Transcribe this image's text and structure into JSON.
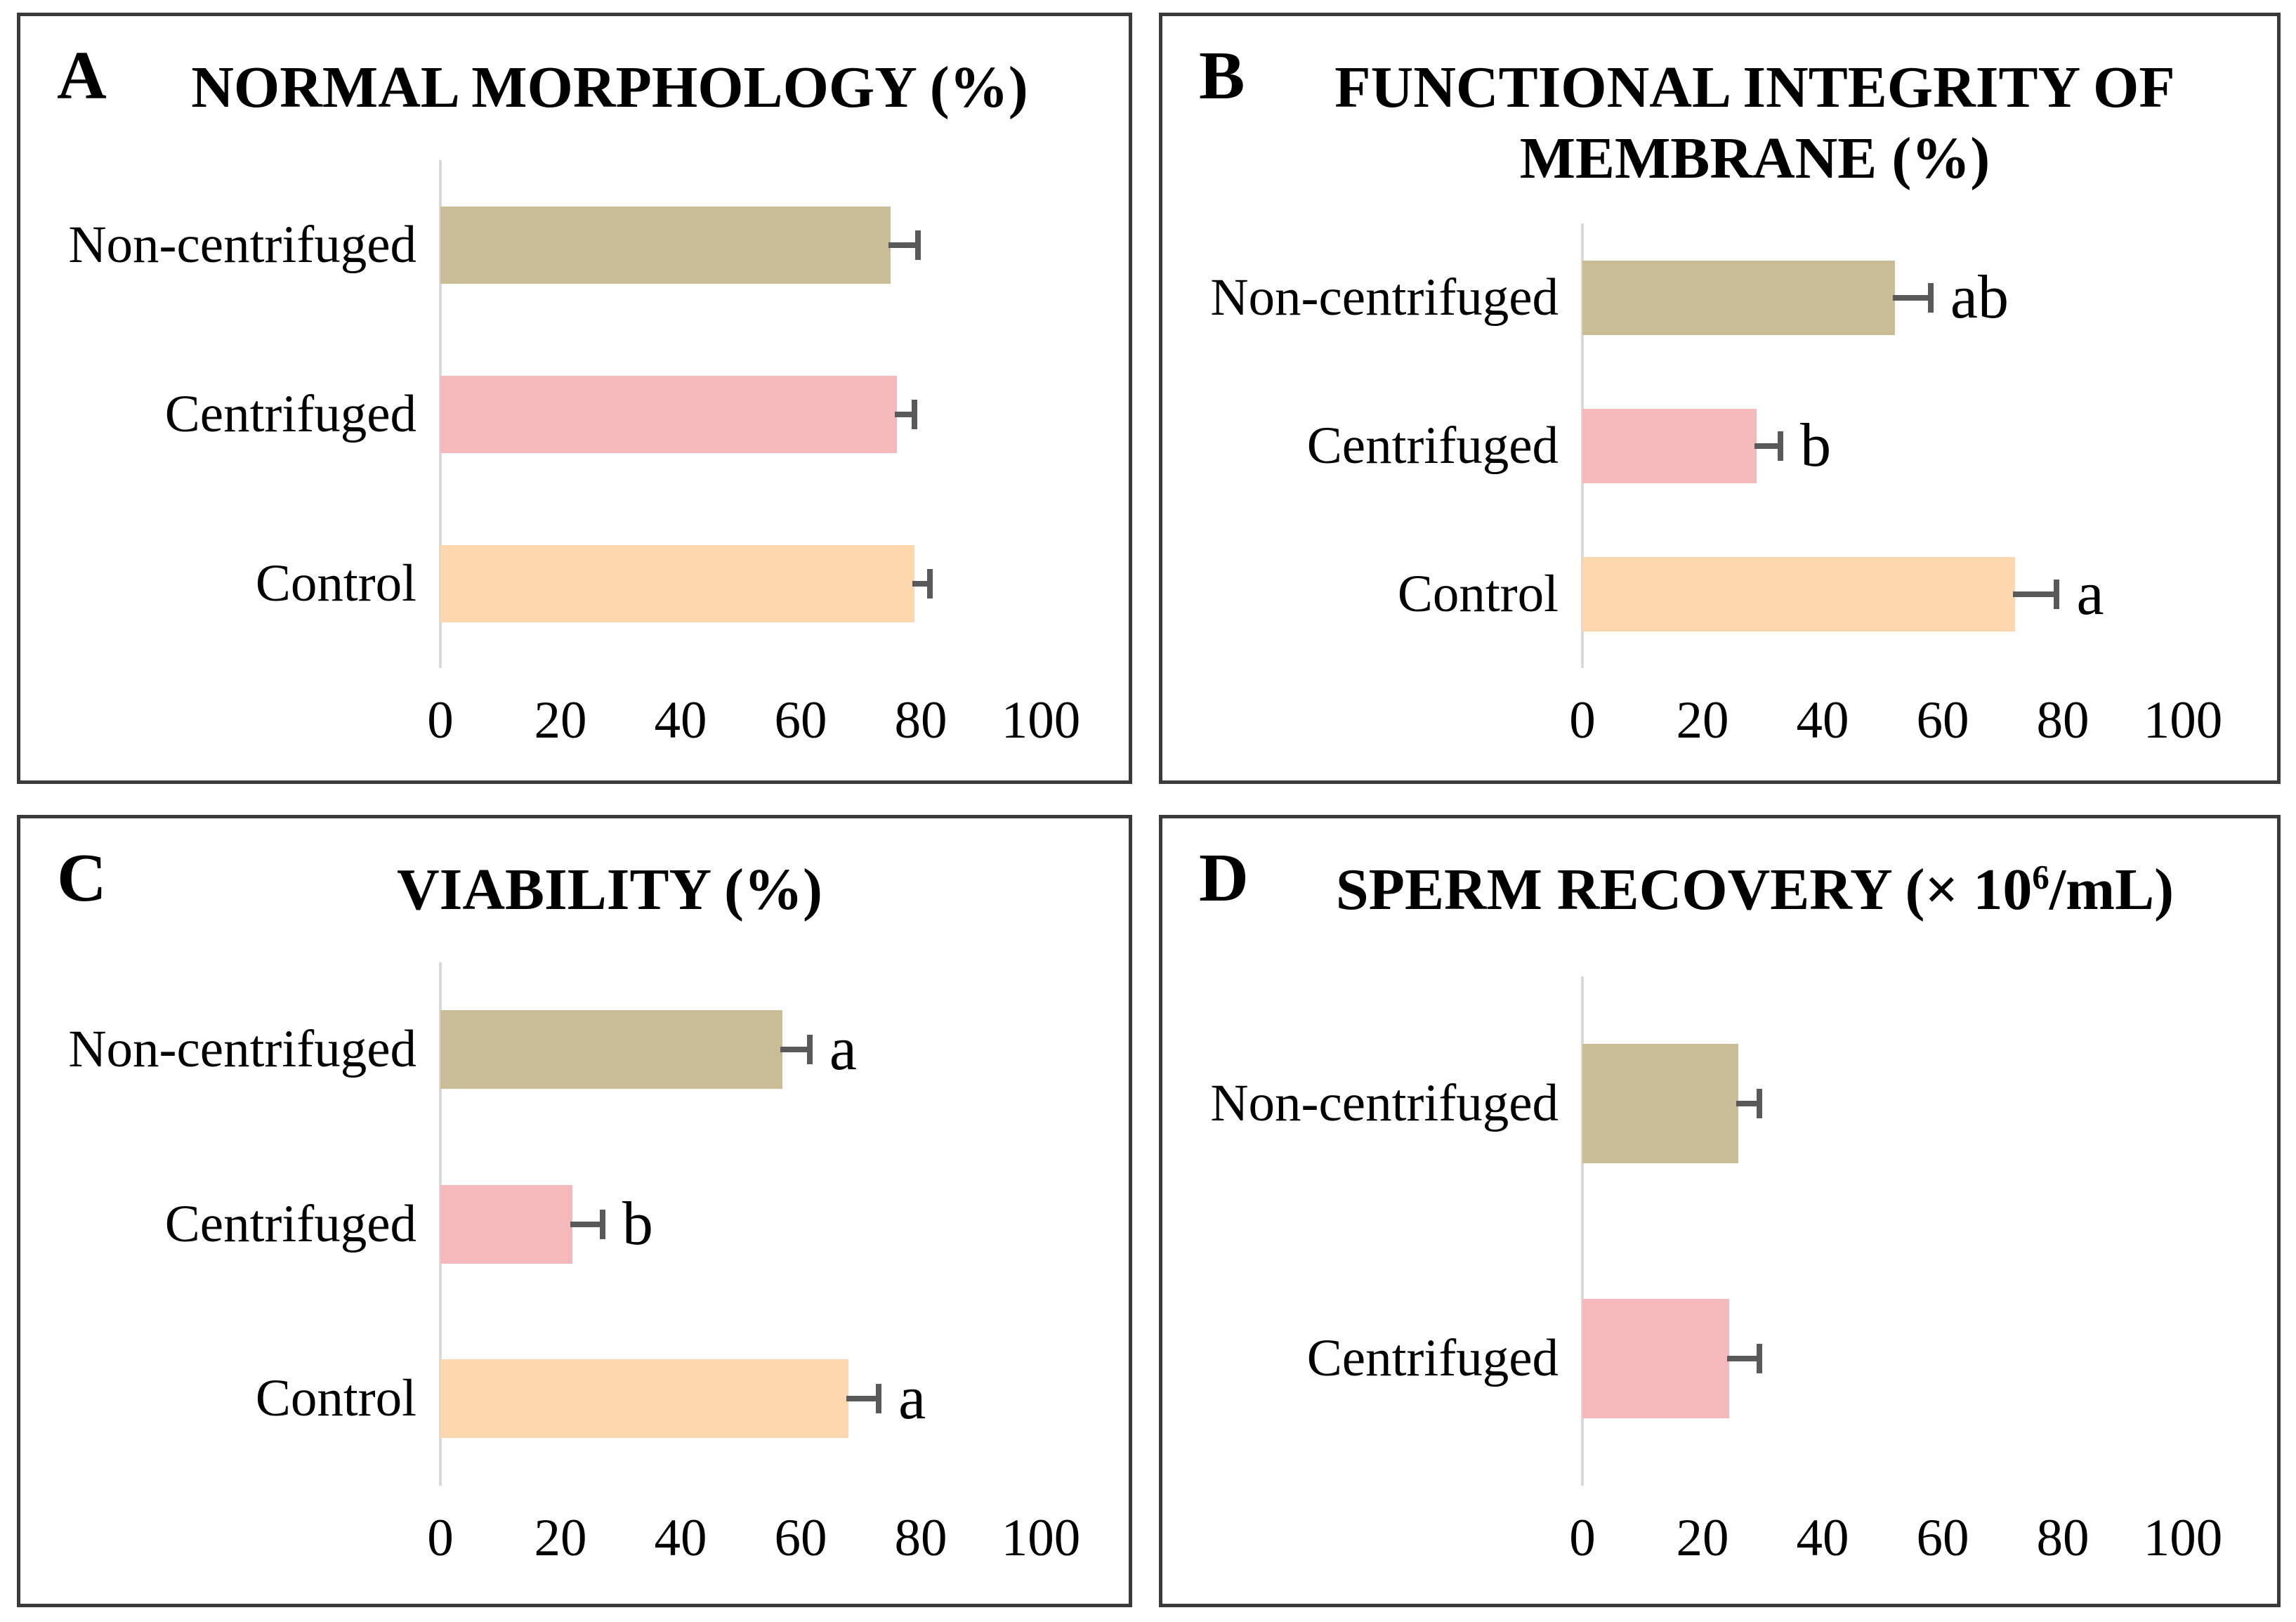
{
  "figure": {
    "description": "Four-panel horizontal bar chart figure comparing sperm parameters between Non-centrifuged, Centrifuged and Control treatments",
    "background": "#ffffff",
    "panel_border_color": "#3a3a3a"
  },
  "colors": {
    "olive": "#c9bd97",
    "pink": "#f5b8bb",
    "peach": "#ffd7ae",
    "axis_line": "#d9d9d9",
    "error_bar": "#595959",
    "text": "#000000"
  },
  "chart_data": [
    {
      "type": "bar",
      "orientation": "horizontal",
      "panel": "A",
      "title": "NORMAL MORPHOLOGY (%)",
      "title_lines": [
        "NORMAL MORPHOLOGY (%)"
      ],
      "categories": [
        "Non-centrifuged",
        "Centrifuged",
        "Control"
      ],
      "values": [
        75,
        76,
        79
      ],
      "errors": [
        4.5,
        3,
        2.5
      ],
      "sig_letters": [
        "",
        "",
        ""
      ],
      "bar_colors": [
        "olive",
        "pink",
        "peach"
      ],
      "x_ticks": [
        0,
        20,
        40,
        60,
        80,
        100
      ],
      "xlim": [
        0,
        105
      ],
      "grid": false,
      "legend": "none"
    },
    {
      "type": "bar",
      "orientation": "horizontal",
      "panel": "B",
      "title": "FUNCTIONAL INTEGRITY OF MEMBRANE (%)",
      "title_lines": [
        "FUNCTIONAL INTEGRITY OF",
        "MEMBRANE (%)"
      ],
      "categories": [
        "Non-centrifuged",
        "Centrifuged",
        "Control"
      ],
      "values": [
        52,
        29,
        72
      ],
      "errors": [
        6,
        4,
        7
      ],
      "sig_letters": [
        "ab",
        "b",
        "a"
      ],
      "bar_colors": [
        "olive",
        "pink",
        "peach"
      ],
      "x_ticks": [
        0,
        20,
        40,
        60,
        80,
        100
      ],
      "xlim": [
        0,
        105
      ],
      "grid": false,
      "legend": "none"
    },
    {
      "type": "bar",
      "orientation": "horizontal",
      "panel": "C",
      "title": "VIABILITY (%)",
      "title_lines": [
        "VIABILITY (%)"
      ],
      "categories": [
        "Non-centrifuged",
        "Centrifuged",
        "Control"
      ],
      "values": [
        57,
        22,
        68
      ],
      "errors": [
        4.5,
        5,
        5
      ],
      "sig_letters": [
        "a",
        "b",
        "a"
      ],
      "bar_colors": [
        "olive",
        "pink",
        "peach"
      ],
      "x_ticks": [
        0,
        20,
        40,
        60,
        80,
        100
      ],
      "xlim": [
        0,
        105
      ],
      "grid": false,
      "legend": "none"
    },
    {
      "type": "bar",
      "orientation": "horizontal",
      "panel": "D",
      "title": "SPERM RECOVERY (× 10⁶/mL)",
      "title_lines": [
        "SPERM RECOVERY (× 10⁶/mL)"
      ],
      "categories": [
        "Non-centrifuged",
        "Centrifuged"
      ],
      "values": [
        26,
        24.5
      ],
      "errors": [
        3.5,
        5
      ],
      "sig_letters": [
        "",
        ""
      ],
      "bar_colors": [
        "olive",
        "pink"
      ],
      "x_ticks": [
        0,
        20,
        40,
        60,
        80,
        100
      ],
      "xlim": [
        0,
        105
      ],
      "grid": false,
      "legend": "none"
    }
  ]
}
